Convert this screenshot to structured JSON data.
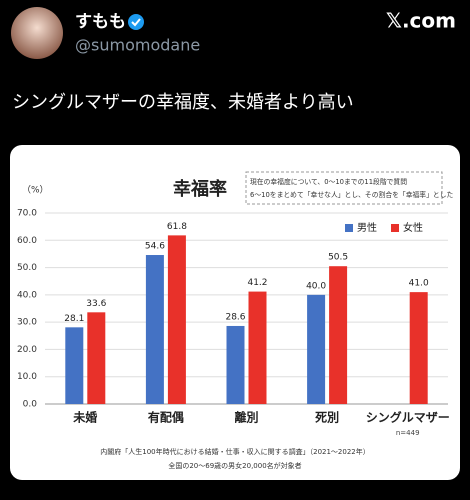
{
  "post": {
    "name": "すもも",
    "handle": "@sumomodane",
    "site": "𝕏.com",
    "text": "シングルマザーの幸福度、未婚者より高い"
  },
  "chart_data": {
    "type": "bar",
    "title": "幸福率",
    "y_unit": "（%）",
    "note": [
      "現在の幸福度について、0～10までの11段階で質問",
      "6～10をまとめて「幸せな人」とし、その割合を「幸福率」とした"
    ],
    "categories": [
      "未婚",
      "有配偶",
      "離別",
      "死別",
      "シングルマザー"
    ],
    "category_note": {
      "index": 4,
      "text": "n=449"
    },
    "series": [
      {
        "name": "男性",
        "color": "#4472c4",
        "values": [
          28.1,
          54.6,
          28.6,
          40,
          null
        ],
        "value_labels": [
          "28.1",
          "54.6",
          "28.6",
          "40.0",
          null
        ]
      },
      {
        "name": "女性",
        "color": "#e8312a",
        "values": [
          33.6,
          61.8,
          41.2,
          50.5,
          41
        ],
        "value_labels": [
          "33.6",
          "61.8",
          "41.2",
          "50.5",
          "41.0"
        ]
      }
    ],
    "ylim": [
      0,
      70
    ],
    "yticks": [
      {
        "value": 0,
        "label": "0.0"
      },
      {
        "value": 10,
        "label": "10.0"
      },
      {
        "value": 20,
        "label": "20.0"
      },
      {
        "value": 30,
        "label": "30.0"
      },
      {
        "value": 40,
        "label": "40.0"
      },
      {
        "value": 50,
        "label": "50.0"
      },
      {
        "value": 60,
        "label": "60.0"
      },
      {
        "value": 70,
        "label": "70.0"
      }
    ],
    "grid": true,
    "legend": "top-right",
    "source": [
      "内閣府「人生100年時代における結婚・仕事・収入に関する調査」（2021～2022年）",
      "全国の20～69歳の男女20,000名が対象者"
    ]
  }
}
